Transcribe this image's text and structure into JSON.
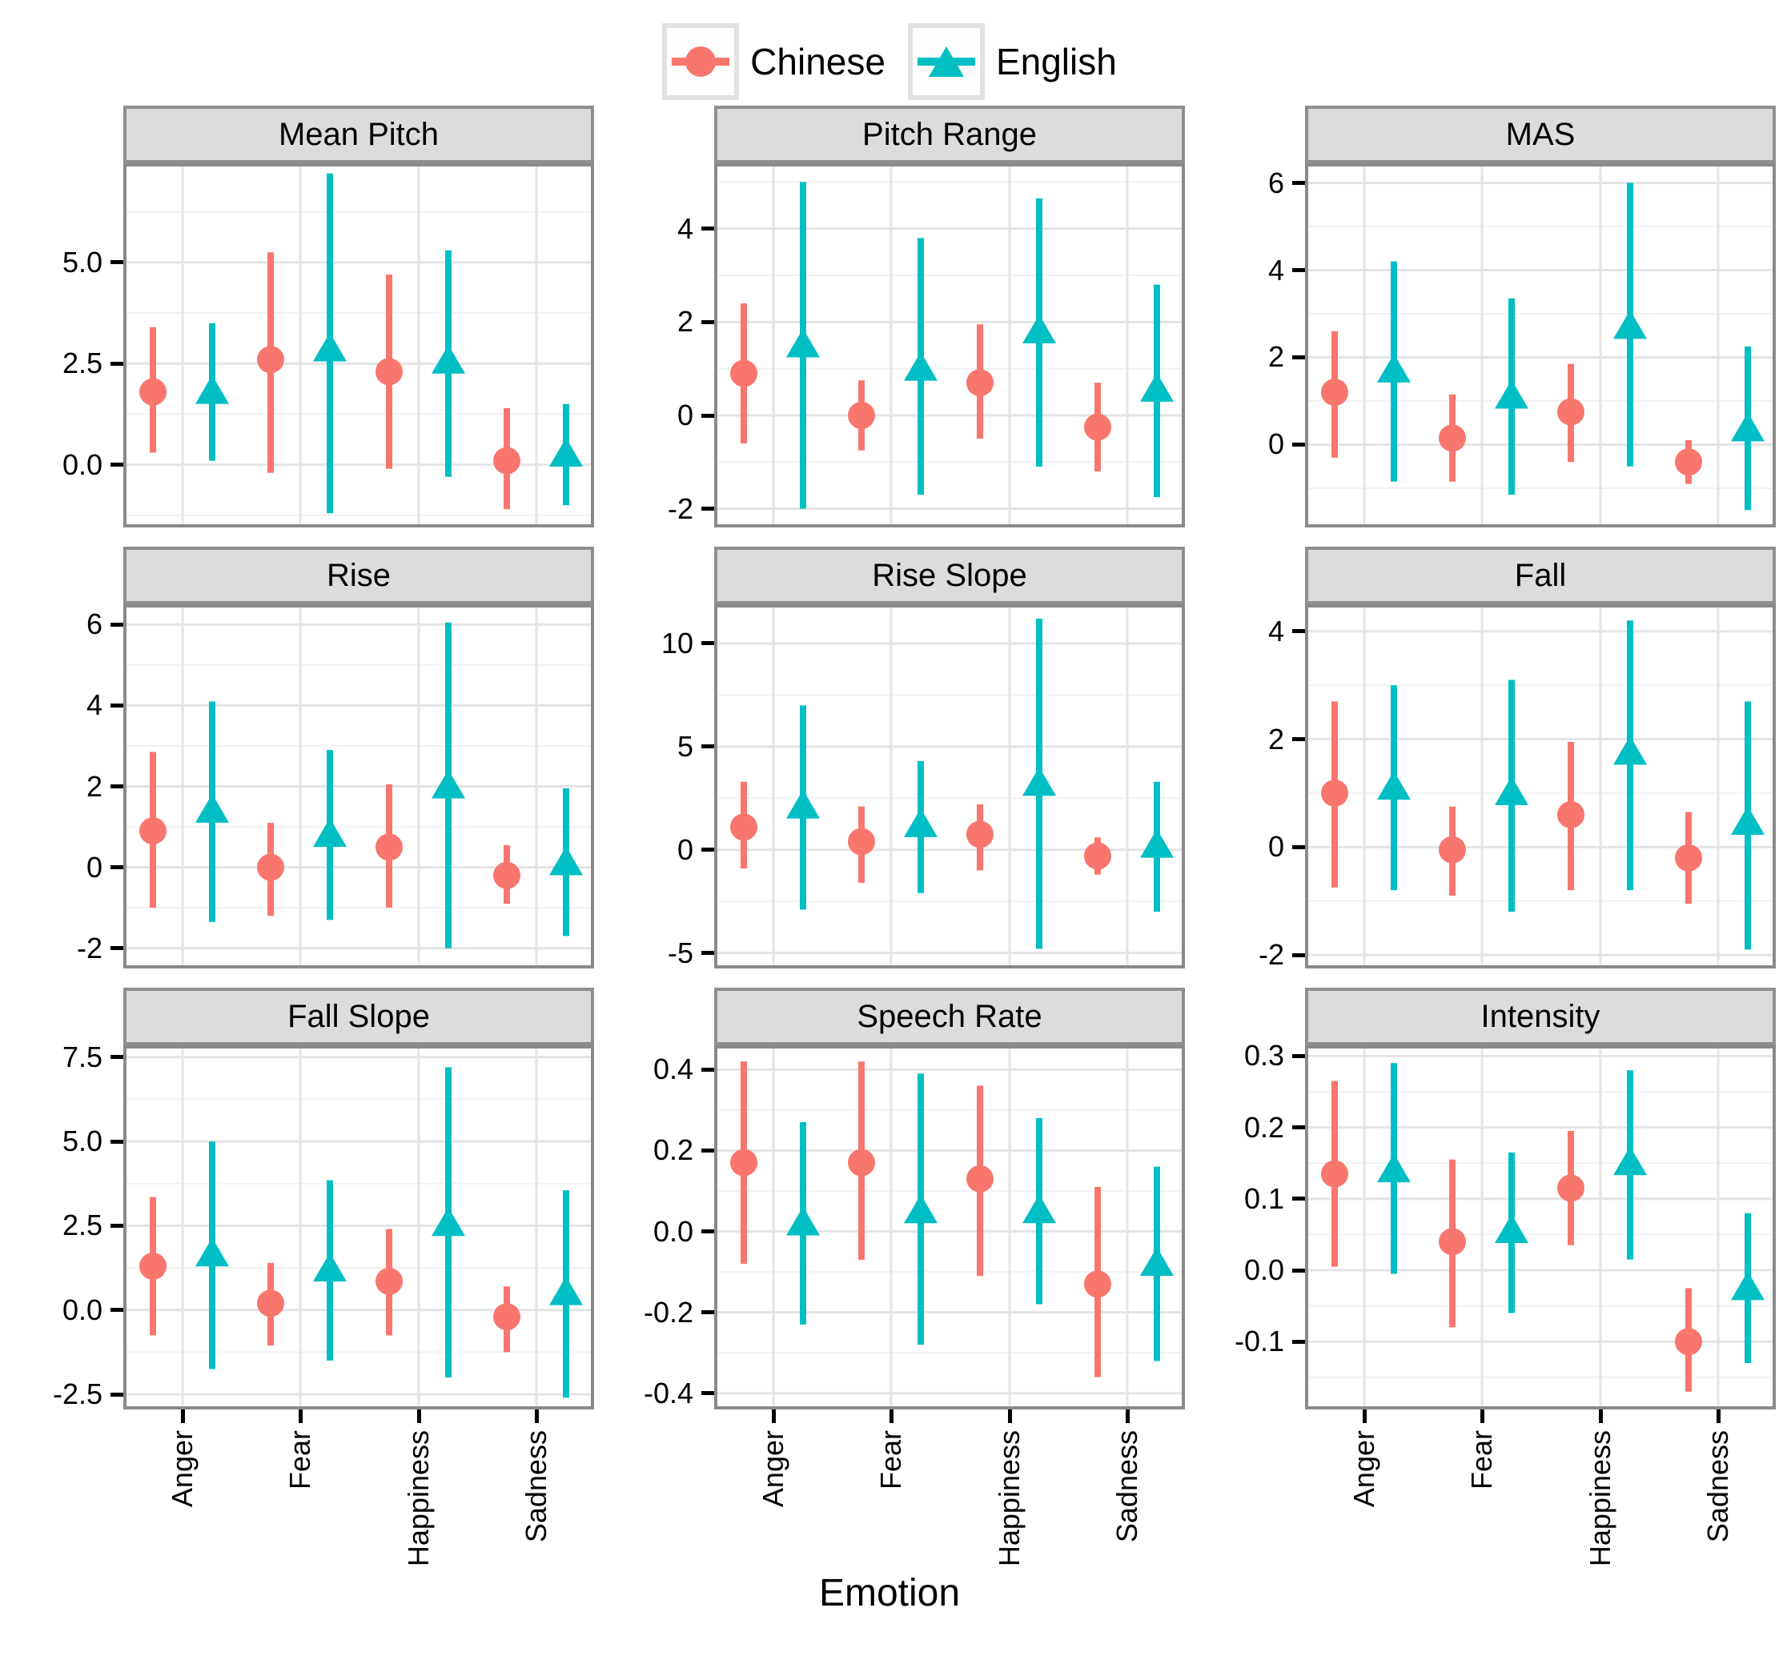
{
  "legend": {
    "items": [
      {
        "label": "Chinese",
        "marker": "circle",
        "color": "#F8766D"
      },
      {
        "label": "English",
        "marker": "triangle",
        "color": "#00BFC4"
      }
    ]
  },
  "axes": {
    "x_title": "Emotion",
    "categories": [
      "Anger",
      "Fear",
      "Happiness",
      "Sadness"
    ]
  },
  "colors": {
    "chinese": "#F8766D",
    "english": "#00BFC4",
    "strip_bg": "#DCDCDC",
    "strip_border": "#8F8F8F",
    "panel_border": "#8A8A8A",
    "grid_major": "#E4E4E4",
    "grid_minor": "#F2F2F2",
    "axis_text": "#000000"
  },
  "chart_data": {
    "type": "pointrange",
    "description": "3x3 facet grid (free y scales) of mean +/- interval by Emotion for two languages",
    "categories": [
      "Anger",
      "Fear",
      "Happiness",
      "Sadness"
    ],
    "series_names": [
      "Chinese",
      "English"
    ],
    "legend_position": "top",
    "grid": true,
    "facets": [
      {
        "title": "Mean Pitch",
        "ylim": [
          -1.55,
          7.45
        ],
        "yticks": [
          0.0,
          2.5,
          5.0
        ],
        "ytick_labels": [
          "0.0",
          "2.5",
          "5.0"
        ],
        "chinese": [
          [
            1.8,
            0.3,
            3.4
          ],
          [
            2.6,
            -0.2,
            5.25
          ],
          [
            2.3,
            -0.1,
            4.7
          ],
          [
            0.1,
            -1.1,
            1.4
          ]
        ],
        "english": [
          [
            1.8,
            0.1,
            3.5
          ],
          [
            2.85,
            -1.2,
            7.2
          ],
          [
            2.55,
            -0.3,
            5.3
          ],
          [
            0.25,
            -1.0,
            1.5
          ]
        ]
      },
      {
        "title": "Pitch Range",
        "ylim": [
          -2.4,
          5.4
        ],
        "yticks": [
          -2,
          0,
          2,
          4
        ],
        "ytick_labels": [
          "-2",
          "0",
          "2",
          "4"
        ],
        "chinese": [
          [
            0.9,
            -0.6,
            2.4
          ],
          [
            0.0,
            -0.75,
            0.75
          ],
          [
            0.7,
            -0.5,
            1.95
          ],
          [
            -0.25,
            -1.2,
            0.7
          ]
        ],
        "english": [
          [
            1.5,
            -2.0,
            5.0
          ],
          [
            1.0,
            -1.7,
            3.8
          ],
          [
            1.8,
            -1.1,
            4.65
          ],
          [
            0.55,
            -1.75,
            2.8
          ]
        ]
      },
      {
        "title": "MAS",
        "ylim": [
          -1.9,
          6.45
        ],
        "yticks": [
          0,
          2,
          4,
          6
        ],
        "ytick_labels": [
          "0",
          "2",
          "4",
          "6"
        ],
        "chinese": [
          [
            1.2,
            -0.3,
            2.6
          ],
          [
            0.15,
            -0.85,
            1.15
          ],
          [
            0.75,
            -0.4,
            1.85
          ],
          [
            -0.4,
            -0.9,
            0.1
          ]
        ],
        "english": [
          [
            1.7,
            -0.85,
            4.2
          ],
          [
            1.1,
            -1.15,
            3.35
          ],
          [
            2.7,
            -0.5,
            6.0
          ],
          [
            0.35,
            -1.5,
            2.25
          ]
        ]
      },
      {
        "title": "Rise",
        "ylim": [
          -2.5,
          6.5
        ],
        "yticks": [
          -2,
          0,
          2,
          4,
          6
        ],
        "ytick_labels": [
          "-2",
          "0",
          "2",
          "4",
          "6"
        ],
        "chinese": [
          [
            0.9,
            -1.0,
            2.85
          ],
          [
            0.0,
            -1.2,
            1.1
          ],
          [
            0.5,
            -1.0,
            2.05
          ],
          [
            -0.2,
            -0.9,
            0.55
          ]
        ],
        "english": [
          [
            1.4,
            -1.35,
            4.1
          ],
          [
            0.8,
            -1.3,
            2.9
          ],
          [
            2.0,
            -2.0,
            6.05
          ],
          [
            0.1,
            -1.7,
            1.95
          ]
        ]
      },
      {
        "title": "Rise Slope",
        "ylim": [
          -5.75,
          11.9
        ],
        "yticks": [
          -5,
          0,
          5,
          10
        ],
        "ytick_labels": [
          "-5",
          "0",
          "5",
          "10"
        ],
        "chinese": [
          [
            1.1,
            -0.9,
            3.3
          ],
          [
            0.4,
            -1.6,
            2.1
          ],
          [
            0.75,
            -1.0,
            2.2
          ],
          [
            -0.3,
            -1.2,
            0.6
          ]
        ],
        "english": [
          [
            2.1,
            -2.9,
            7.0
          ],
          [
            1.2,
            -2.1,
            4.3
          ],
          [
            3.2,
            -4.8,
            11.2
          ],
          [
            0.2,
            -3.0,
            3.3
          ]
        ]
      },
      {
        "title": "Fall",
        "ylim": [
          -2.25,
          4.5
        ],
        "yticks": [
          -2,
          0,
          2,
          4
        ],
        "ytick_labels": [
          "-2",
          "0",
          "2",
          "4"
        ],
        "chinese": [
          [
            1.0,
            -0.75,
            2.7
          ],
          [
            -0.05,
            -0.9,
            0.75
          ],
          [
            0.6,
            -0.8,
            1.95
          ],
          [
            -0.2,
            -1.05,
            0.65
          ]
        ],
        "english": [
          [
            1.1,
            -0.8,
            3.0
          ],
          [
            1.0,
            -1.2,
            3.1
          ],
          [
            1.75,
            -0.8,
            4.2
          ],
          [
            0.45,
            -1.9,
            2.7
          ]
        ]
      },
      {
        "title": "Fall Slope",
        "ylim": [
          -2.95,
          7.85
        ],
        "yticks": [
          -2.5,
          0.0,
          2.5,
          5.0,
          7.5
        ],
        "ytick_labels": [
          "-2.5",
          "0.0",
          "2.5",
          "5.0",
          "7.5"
        ],
        "chinese": [
          [
            1.3,
            -0.75,
            3.35
          ],
          [
            0.2,
            -1.05,
            1.4
          ],
          [
            0.85,
            -0.75,
            2.4
          ],
          [
            -0.2,
            -1.25,
            0.7
          ]
        ],
        "english": [
          [
            1.65,
            -1.75,
            5.0
          ],
          [
            1.2,
            -1.5,
            3.85
          ],
          [
            2.55,
            -2.0,
            7.2
          ],
          [
            0.5,
            -2.6,
            3.55
          ]
        ]
      },
      {
        "title": "Speech Rate",
        "ylim": [
          -0.44,
          0.46
        ],
        "yticks": [
          -0.4,
          -0.2,
          0.0,
          0.2,
          0.4
        ],
        "ytick_labels": [
          "-0.4",
          "-0.2",
          "0.0",
          "0.2",
          "0.4"
        ],
        "chinese": [
          [
            0.17,
            -0.08,
            0.42
          ],
          [
            0.17,
            -0.07,
            0.42
          ],
          [
            0.13,
            -0.11,
            0.36
          ],
          [
            -0.13,
            -0.36,
            0.11
          ]
        ],
        "english": [
          [
            0.02,
            -0.23,
            0.27
          ],
          [
            0.05,
            -0.28,
            0.39
          ],
          [
            0.05,
            -0.18,
            0.28
          ],
          [
            -0.08,
            -0.32,
            0.16
          ]
        ]
      },
      {
        "title": "Intensity",
        "ylim": [
          -0.195,
          0.315
        ],
        "yticks": [
          -0.1,
          0.0,
          0.1,
          0.2,
          0.3
        ],
        "ytick_labels": [
          "-0.1",
          "0.0",
          "0.1",
          "0.2",
          "0.3"
        ],
        "chinese": [
          [
            0.135,
            0.005,
            0.265
          ],
          [
            0.04,
            -0.08,
            0.155
          ],
          [
            0.115,
            0.035,
            0.195
          ],
          [
            -0.1,
            -0.17,
            -0.025
          ]
        ],
        "english": [
          [
            0.14,
            -0.005,
            0.29
          ],
          [
            0.055,
            -0.06,
            0.165
          ],
          [
            0.15,
            0.015,
            0.28
          ],
          [
            -0.025,
            -0.13,
            0.08
          ]
        ]
      }
    ]
  }
}
